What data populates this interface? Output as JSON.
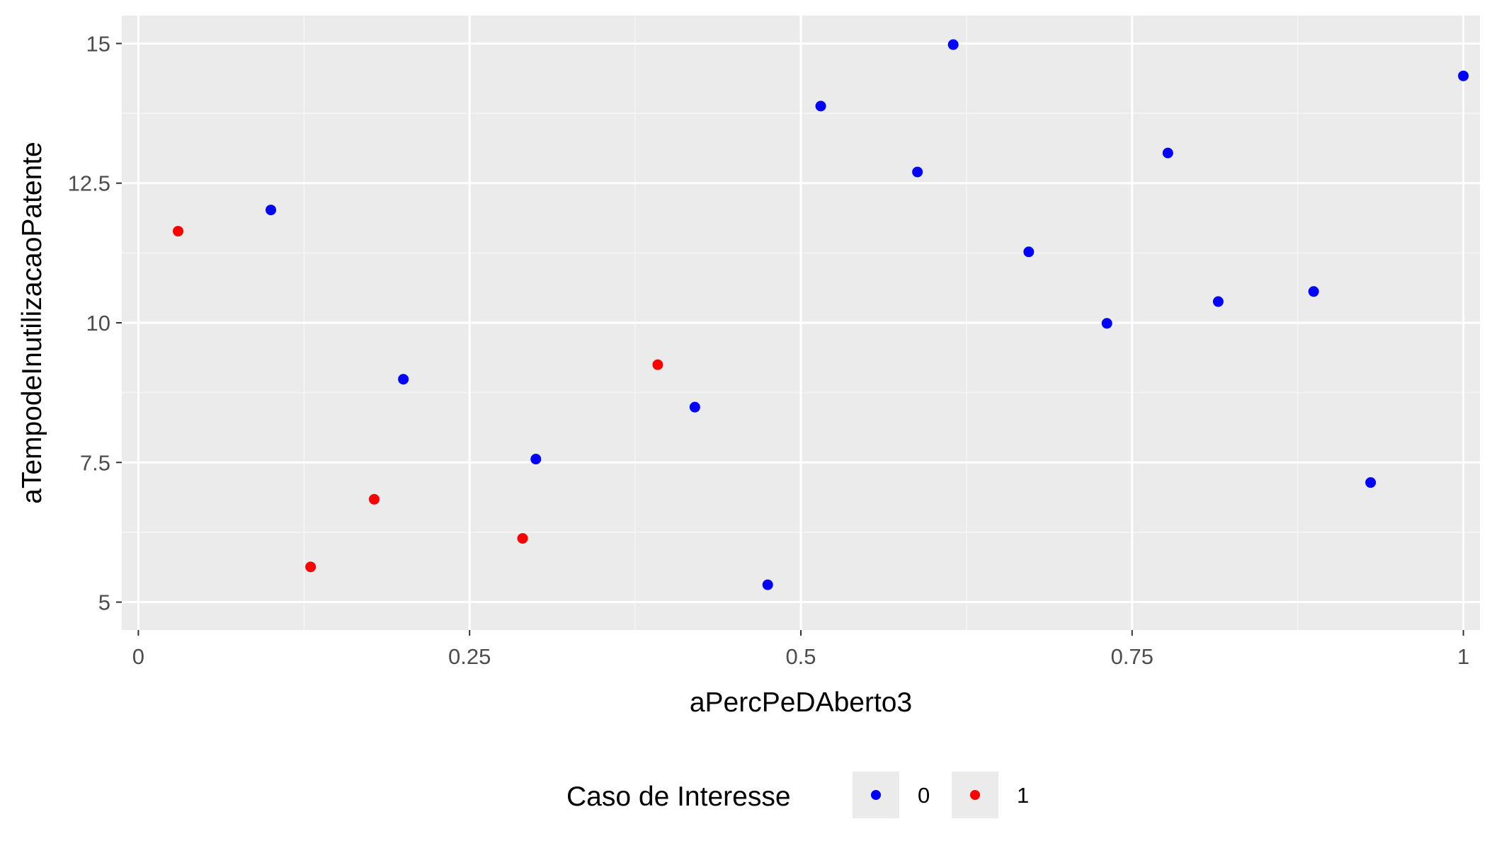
{
  "chart_data": {
    "type": "scatter",
    "xlabel": "aPercPeDAberto3",
    "ylabel": "aTempodeInutilizacaoPatente",
    "xlim": [
      -0.0125,
      1.0125
    ],
    "ylim": [
      4.5,
      15.5
    ],
    "x_ticks": [
      0,
      0.25,
      0.5,
      0.75,
      1
    ],
    "x_tick_labels": [
      "0",
      "0.25",
      "0.5",
      "0.75",
      "1"
    ],
    "y_ticks": [
      5,
      7.5,
      10,
      12.5,
      15
    ],
    "y_tick_labels": [
      "5",
      "7.5",
      "10",
      "12.5",
      "15"
    ],
    "grid": true,
    "legend": {
      "title": "Caso de Interesse",
      "position": "bottom",
      "entries": [
        {
          "label": "0",
          "color": "#0000FF"
        },
        {
          "label": "1",
          "color": "#FF0000"
        }
      ]
    },
    "colors": {
      "panel_background": "#EBEBEB",
      "grid_major": "#FFFFFF",
      "grid_minor": "#F5F5F5",
      "series_0": "#0000FF",
      "series_1": "#FF0000"
    },
    "series": [
      {
        "name": "0",
        "color": "#0000FF",
        "points": [
          [
            0.1,
            12.02
          ],
          [
            0.2,
            8.99
          ],
          [
            0.3,
            7.56
          ],
          [
            0.42,
            8.49
          ],
          [
            0.475,
            5.31
          ],
          [
            0.515,
            13.88
          ],
          [
            0.588,
            12.7
          ],
          [
            0.615,
            14.98
          ],
          [
            0.672,
            11.27
          ],
          [
            0.731,
            9.99
          ],
          [
            0.777,
            13.04
          ],
          [
            0.815,
            10.38
          ],
          [
            0.887,
            10.56
          ],
          [
            0.93,
            7.14
          ],
          [
            1.0,
            14.42
          ]
        ]
      },
      {
        "name": "1",
        "color": "#FF0000",
        "points": [
          [
            0.03,
            11.64
          ],
          [
            0.13,
            5.63
          ],
          [
            0.178,
            6.84
          ],
          [
            0.29,
            6.14
          ],
          [
            0.392,
            9.25
          ]
        ]
      }
    ]
  }
}
